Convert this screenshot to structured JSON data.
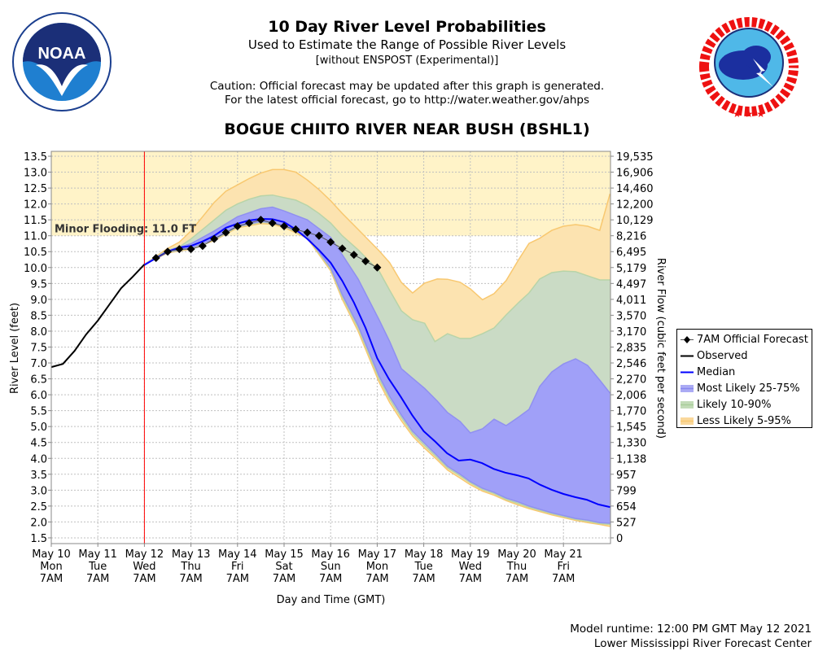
{
  "header": {
    "title": "10 Day River Level Probabilities",
    "subtitle": "Used to Estimate the Range of Possible River Levels",
    "subtitle2": "[without ENSPOST (Experimental)]",
    "caution1": "Caution: Official forecast may be updated after this graph is generated.",
    "caution2": "For the latest official forecast, go to http://water.weather.gov/ahps",
    "station": "BOGUE CHIITO RIVER NEAR BUSH (BSHL1)"
  },
  "logos": {
    "noaa": "NOAA",
    "noaa_ring": "NATIONAL OCEANIC AND ATMOSPHERIC ADMINISTRATION · U.S. DEPARTMENT OF COMMERCE",
    "nws": "NATIONAL WEATHER SERVICE"
  },
  "footer": {
    "runtime": "Model runtime: 12:00 PM GMT May 12 2021",
    "center": "Lower Mississippi River Forecast Center"
  },
  "legend": [
    {
      "label": "7AM Official Forecast",
      "color": "#000000",
      "kind": "diamond-line"
    },
    {
      "label": "Observed",
      "color": "#000000",
      "kind": "line"
    },
    {
      "label": "Median",
      "color": "#0000ff",
      "kind": "line"
    },
    {
      "label": "Most Likely 25-75%",
      "color": "#8888f0",
      "kind": "band"
    },
    {
      "label": "Likely 10-90%",
      "color": "#a8cc98",
      "kind": "band"
    },
    {
      "label": "Less Likely 5-95%",
      "color": "#f8c870",
      "kind": "band"
    }
  ],
  "chart_data": {
    "type": "area",
    "xlabel": "Day and Time (GMT)",
    "ylabel": "River Level (feet)",
    "y2label": "River Flow (cubic feet per second)",
    "ylim": [
      1.5,
      13.5
    ],
    "xlim_days_from_may10_7am": [
      0,
      12
    ],
    "yticks": [
      13.5,
      13.0,
      12.5,
      12.0,
      11.5,
      11.0,
      10.5,
      10.0,
      9.5,
      9.0,
      8.5,
      8.0,
      7.5,
      7.0,
      6.5,
      6.0,
      5.5,
      5.0,
      4.5,
      4.0,
      3.5,
      3.0,
      2.5,
      2.0,
      1.5
    ],
    "ytick_labels": [
      "13.5",
      "13.0",
      "12.5",
      "12.0",
      "11.5",
      "11.0",
      "10.5",
      "10.0",
      "9.5",
      "9.0",
      "8.5",
      "8.0",
      "7.5",
      "7.0",
      "6.5",
      "6.0",
      "5.5",
      "5.0",
      "4.5",
      "4.0",
      "3.5",
      "3.0",
      "2.5",
      "2.0",
      "1.5"
    ],
    "y2tick_labels": [
      "19,535",
      "16,906",
      "14,460",
      "12,200",
      "10,129",
      "8,216",
      "6,495",
      "5,179",
      "4,497",
      "4,011",
      "3,570",
      "3,170",
      "2,835",
      "2,546",
      "2,270",
      "2,006",
      "1,770",
      "1,545",
      "1,330",
      "1,138",
      "957",
      "799",
      "654",
      "527",
      "0"
    ],
    "xticks": [
      [
        "May 10",
        "Mon",
        "7AM"
      ],
      [
        "May 11",
        "Tue",
        "7AM"
      ],
      [
        "May 12",
        "Wed",
        "7AM"
      ],
      [
        "May 13",
        "Thu",
        "7AM"
      ],
      [
        "May 14",
        "Fri",
        "7AM"
      ],
      [
        "May 15",
        "Sat",
        "7AM"
      ],
      [
        "May 16",
        "Sun",
        "7AM"
      ],
      [
        "May 17",
        "Mon",
        "7AM"
      ],
      [
        "May 18",
        "Tue",
        "7AM"
      ],
      [
        "May 19",
        "Wed",
        "7AM"
      ],
      [
        "May 20",
        "Thu",
        "7AM"
      ],
      [
        "May 21",
        "Fri",
        "7AM"
      ]
    ],
    "flood": {
      "label": "Minor Flooding: 11.0 FT",
      "stage": 11.0,
      "color": "#fff3c8"
    },
    "current_time_day": 2,
    "observed": [
      [
        0,
        6.87
      ],
      [
        0.25,
        6.97
      ],
      [
        0.5,
        7.38
      ],
      [
        0.75,
        7.9
      ],
      [
        1,
        8.33
      ],
      [
        1.25,
        8.84
      ],
      [
        1.5,
        9.35
      ],
      [
        1.75,
        9.71
      ],
      [
        2,
        10.1
      ]
    ],
    "official": [
      [
        2.25,
        10.3
      ],
      [
        2.5,
        10.5
      ],
      [
        2.75,
        10.58
      ],
      [
        3,
        10.58
      ],
      [
        3.25,
        10.68
      ],
      [
        3.5,
        10.9
      ],
      [
        3.75,
        11.1
      ],
      [
        4,
        11.3
      ],
      [
        4.25,
        11.4
      ],
      [
        4.5,
        11.5
      ],
      [
        4.75,
        11.4
      ],
      [
        5,
        11.3
      ],
      [
        5.25,
        11.2
      ],
      [
        5.5,
        11.1
      ],
      [
        5.75,
        11.0
      ],
      [
        6,
        10.8
      ],
      [
        6.25,
        10.6
      ],
      [
        6.5,
        10.4
      ],
      [
        6.75,
        10.2
      ],
      [
        7,
        10.0
      ]
    ],
    "median": [
      [
        2,
        10.08
      ],
      [
        2.25,
        10.3
      ],
      [
        2.5,
        10.5
      ],
      [
        2.75,
        10.63
      ],
      [
        3,
        10.68
      ],
      [
        3.25,
        10.82
      ],
      [
        3.5,
        11.0
      ],
      [
        3.75,
        11.25
      ],
      [
        4,
        11.38
      ],
      [
        4.25,
        11.48
      ],
      [
        4.5,
        11.53
      ],
      [
        4.75,
        11.52
      ],
      [
        5,
        11.43
      ],
      [
        5.25,
        11.2
      ],
      [
        5.5,
        10.9
      ],
      [
        5.75,
        10.55
      ],
      [
        6,
        10.15
      ],
      [
        6.25,
        9.58
      ],
      [
        6.5,
        8.9
      ],
      [
        6.75,
        8.1
      ],
      [
        7,
        7.15
      ],
      [
        7.25,
        6.5
      ],
      [
        7.5,
        5.95
      ],
      [
        7.75,
        5.36
      ],
      [
        8,
        4.85
      ],
      [
        8.25,
        4.52
      ],
      [
        8.5,
        4.16
      ],
      [
        8.75,
        3.93
      ],
      [
        9,
        3.96
      ],
      [
        9.25,
        3.85
      ],
      [
        9.5,
        3.67
      ],
      [
        9.75,
        3.55
      ],
      [
        10,
        3.47
      ],
      [
        10.25,
        3.37
      ],
      [
        10.5,
        3.17
      ],
      [
        10.75,
        3.01
      ],
      [
        11,
        2.88
      ],
      [
        11.25,
        2.78
      ],
      [
        11.5,
        2.7
      ],
      [
        11.75,
        2.55
      ],
      [
        12,
        2.47
      ]
    ],
    "bands": [
      {
        "name": "Less Likely 5-95%",
        "fill": "#fce3b0",
        "stroke": "#f8c870",
        "upper": [
          [
            2,
            10.1
          ],
          [
            2.5,
            10.6
          ],
          [
            2.75,
            10.8
          ],
          [
            3,
            11.15
          ],
          [
            3.25,
            11.6
          ],
          [
            3.5,
            12.05
          ],
          [
            3.75,
            12.4
          ],
          [
            4,
            12.6
          ],
          [
            4.25,
            12.8
          ],
          [
            4.5,
            12.97
          ],
          [
            4.75,
            13.08
          ],
          [
            5,
            13.08
          ],
          [
            5.25,
            13.0
          ],
          [
            5.5,
            12.75
          ],
          [
            5.75,
            12.45
          ],
          [
            6,
            12.1
          ],
          [
            6.25,
            11.7
          ],
          [
            6.59,
            11.2
          ],
          [
            7.04,
            10.53
          ],
          [
            7.27,
            10.15
          ],
          [
            7.52,
            9.53
          ],
          [
            7.76,
            9.2
          ],
          [
            8.02,
            9.51
          ],
          [
            8.29,
            9.64
          ],
          [
            8.51,
            9.63
          ],
          [
            8.78,
            9.54
          ],
          [
            9,
            9.33
          ],
          [
            9.26,
            8.99
          ],
          [
            9.51,
            9.18
          ],
          [
            9.77,
            9.59
          ],
          [
            10.03,
            10.23
          ],
          [
            10.26,
            10.76
          ],
          [
            10.49,
            10.92
          ],
          [
            10.75,
            11.17
          ],
          [
            11,
            11.3
          ],
          [
            11.26,
            11.35
          ],
          [
            11.52,
            11.3
          ],
          [
            11.78,
            11.17
          ],
          [
            12,
            12.32
          ]
        ],
        "lower": [
          [
            2,
            10.1
          ],
          [
            2.5,
            10.46
          ],
          [
            3,
            10.58
          ],
          [
            3.5,
            10.85
          ],
          [
            4,
            11.25
          ],
          [
            4.5,
            11.38
          ],
          [
            4.75,
            11.36
          ],
          [
            5,
            11.26
          ],
          [
            5.5,
            10.92
          ],
          [
            6,
            9.9
          ],
          [
            6.25,
            9.0
          ],
          [
            6.59,
            8.0
          ],
          [
            7.04,
            6.4
          ],
          [
            7.27,
            5.75
          ],
          [
            7.52,
            5.18
          ],
          [
            7.76,
            4.7
          ],
          [
            8.02,
            4.32
          ],
          [
            8.29,
            3.95
          ],
          [
            8.51,
            3.63
          ],
          [
            8.78,
            3.38
          ],
          [
            9,
            3.17
          ],
          [
            9.26,
            2.97
          ],
          [
            9.51,
            2.84
          ],
          [
            9.77,
            2.67
          ],
          [
            10.03,
            2.53
          ],
          [
            10.26,
            2.42
          ],
          [
            10.75,
            2.22
          ],
          [
            11.26,
            2.05
          ],
          [
            11.52,
            1.98
          ],
          [
            11.78,
            1.92
          ],
          [
            12,
            1.86
          ]
        ]
      },
      {
        "name": "Likely 10-90%",
        "fill": "#cadbc5",
        "stroke": "#b8d4a8",
        "upper": [
          [
            2,
            10.1
          ],
          [
            2.5,
            10.55
          ],
          [
            2.75,
            10.65
          ],
          [
            3,
            10.9
          ],
          [
            3.25,
            11.2
          ],
          [
            3.5,
            11.5
          ],
          [
            3.75,
            11.8
          ],
          [
            4,
            12.0
          ],
          [
            4.25,
            12.15
          ],
          [
            4.5,
            12.25
          ],
          [
            4.75,
            12.28
          ],
          [
            5,
            12.2
          ],
          [
            5.25,
            12.12
          ],
          [
            5.5,
            11.95
          ],
          [
            5.75,
            11.7
          ],
          [
            6,
            11.4
          ],
          [
            6.25,
            11.0
          ],
          [
            6.59,
            10.56
          ],
          [
            7.04,
            9.89
          ],
          [
            7.27,
            9.28
          ],
          [
            7.52,
            8.64
          ],
          [
            7.76,
            8.36
          ],
          [
            8.02,
            8.25
          ],
          [
            8.24,
            7.67
          ],
          [
            8.51,
            7.92
          ],
          [
            8.78,
            7.77
          ],
          [
            9,
            7.77
          ],
          [
            9.26,
            7.92
          ],
          [
            9.51,
            8.1
          ],
          [
            9.77,
            8.51
          ],
          [
            10.03,
            8.89
          ],
          [
            10.26,
            9.2
          ],
          [
            10.49,
            9.64
          ],
          [
            10.75,
            9.84
          ],
          [
            11,
            9.89
          ],
          [
            11.26,
            9.87
          ],
          [
            11.52,
            9.74
          ],
          [
            11.78,
            9.61
          ],
          [
            12,
            9.61
          ]
        ],
        "lower": [
          [
            2,
            10.1
          ],
          [
            2.5,
            10.48
          ],
          [
            3,
            10.6
          ],
          [
            3.5,
            10.88
          ],
          [
            4,
            11.28
          ],
          [
            4.5,
            11.42
          ],
          [
            4.75,
            11.4
          ],
          [
            5,
            11.3
          ],
          [
            5.5,
            10.95
          ],
          [
            6,
            9.95
          ],
          [
            6.25,
            9.08
          ],
          [
            6.59,
            8.1
          ],
          [
            7.04,
            6.5
          ],
          [
            7.27,
            5.86
          ],
          [
            7.52,
            5.28
          ],
          [
            7.76,
            4.78
          ],
          [
            8.02,
            4.4
          ],
          [
            8.29,
            4.02
          ],
          [
            8.51,
            3.7
          ],
          [
            8.78,
            3.45
          ],
          [
            9,
            3.23
          ],
          [
            9.26,
            3.02
          ],
          [
            9.51,
            2.89
          ],
          [
            9.77,
            2.71
          ],
          [
            10.03,
            2.58
          ],
          [
            10.26,
            2.46
          ],
          [
            10.75,
            2.26
          ],
          [
            11.26,
            2.08
          ],
          [
            11.52,
            2.02
          ],
          [
            11.78,
            1.95
          ],
          [
            12,
            1.92
          ]
        ]
      },
      {
        "name": "Most Likely 25-75%",
        "fill": "#a0a0f8",
        "stroke": "#9090f0",
        "upper": [
          [
            2,
            10.1
          ],
          [
            2.5,
            10.52
          ],
          [
            3,
            10.75
          ],
          [
            3.5,
            11.15
          ],
          [
            4,
            11.6
          ],
          [
            4.5,
            11.85
          ],
          [
            4.75,
            11.9
          ],
          [
            5,
            11.78
          ],
          [
            5.5,
            11.5
          ],
          [
            6,
            10.95
          ],
          [
            6.25,
            10.4
          ],
          [
            6.59,
            9.64
          ],
          [
            7.04,
            8.36
          ],
          [
            7.27,
            7.67
          ],
          [
            7.52,
            6.82
          ],
          [
            7.76,
            6.52
          ],
          [
            8.02,
            6.2
          ],
          [
            8.29,
            5.8
          ],
          [
            8.51,
            5.44
          ],
          [
            8.78,
            5.16
          ],
          [
            9,
            4.8
          ],
          [
            9.26,
            4.93
          ],
          [
            9.51,
            5.23
          ],
          [
            9.77,
            5.03
          ],
          [
            10.03,
            5.29
          ],
          [
            10.26,
            5.54
          ],
          [
            10.49,
            6.26
          ],
          [
            10.75,
            6.72
          ],
          [
            11,
            6.97
          ],
          [
            11.26,
            7.13
          ],
          [
            11.52,
            6.92
          ],
          [
            11.78,
            6.46
          ],
          [
            12,
            6.05
          ]
        ],
        "lower": [
          [
            2,
            10.1
          ],
          [
            2.5,
            10.5
          ],
          [
            3,
            10.62
          ],
          [
            3.5,
            10.9
          ],
          [
            4,
            11.3
          ],
          [
            4.5,
            11.45
          ],
          [
            4.75,
            11.42
          ],
          [
            5,
            11.32
          ],
          [
            5.5,
            10.98
          ],
          [
            6,
            10.0
          ],
          [
            6.25,
            9.15
          ],
          [
            6.59,
            8.18
          ],
          [
            7.04,
            6.59
          ],
          [
            7.27,
            5.95
          ],
          [
            7.52,
            5.36
          ],
          [
            7.76,
            4.85
          ],
          [
            8.02,
            4.47
          ],
          [
            8.29,
            4.08
          ],
          [
            8.51,
            3.75
          ],
          [
            8.78,
            3.5
          ],
          [
            9,
            3.27
          ],
          [
            9.26,
            3.06
          ],
          [
            9.51,
            2.93
          ],
          [
            9.77,
            2.75
          ],
          [
            10.03,
            2.63
          ],
          [
            10.26,
            2.5
          ],
          [
            10.75,
            2.29
          ],
          [
            11.26,
            2.11
          ],
          [
            11.52,
            2.06
          ],
          [
            11.78,
            1.98
          ],
          [
            12,
            1.96
          ]
        ]
      }
    ]
  }
}
